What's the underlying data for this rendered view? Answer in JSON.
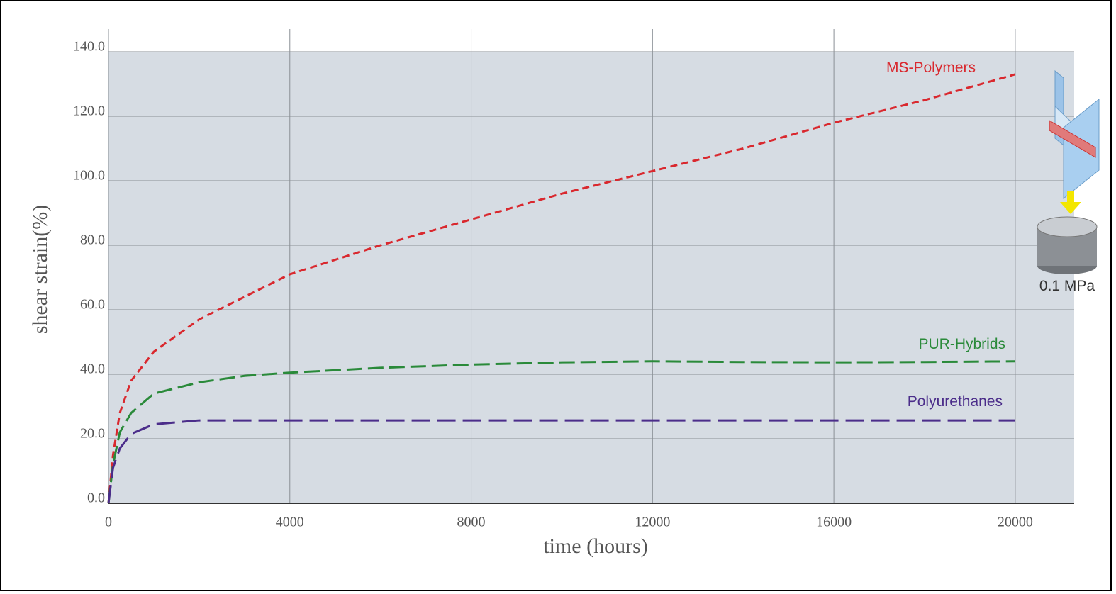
{
  "chart_data": {
    "type": "line",
    "xlabel": "time (hours)",
    "ylabel": "shear strain(%)",
    "annotation": "0.1 MPa",
    "x": [
      0,
      100,
      250,
      500,
      1000,
      2000,
      3000,
      4000,
      6000,
      8000,
      10000,
      12000,
      14000,
      16000,
      18000,
      20000
    ],
    "series": [
      {
        "name": "MS-Polymers",
        "color": "#d9282e",
        "values": [
          0,
          15,
          28,
          38,
          47,
          57,
          64,
          71,
          80,
          88,
          96,
          103,
          110,
          118,
          125,
          133
        ]
      },
      {
        "name": "PUR-Hybrids",
        "color": "#2a8a3a",
        "values": [
          0,
          12,
          22,
          28,
          34,
          37.5,
          39.5,
          40.5,
          42,
          43,
          43.7,
          44,
          43.8,
          43.7,
          43.8,
          44
        ]
      },
      {
        "name": "Polyurethanes",
        "color": "#4b2d8a",
        "values": [
          0,
          11,
          17,
          21.5,
          24.5,
          25.7,
          25.7,
          25.7,
          25.7,
          25.7,
          25.7,
          25.7,
          25.7,
          25.7,
          25.7,
          25.7
        ]
      }
    ],
    "xlim": [
      0,
      21300
    ],
    "ylim": [
      0,
      140
    ],
    "xticks": [
      0,
      4000,
      8000,
      12000,
      16000,
      20000
    ],
    "yticks": [
      {
        "value": 0,
        "label": "0.0"
      },
      {
        "value": 20,
        "label": "20.0"
      },
      {
        "value": 40,
        "label": "40.0"
      },
      {
        "value": 60,
        "label": "60.0"
      },
      {
        "value": 80,
        "label": "80.0"
      },
      {
        "value": 100,
        "label": "100.0"
      },
      {
        "value": 120,
        "label": "120.0"
      },
      {
        "value": 140,
        "label": "140.0"
      }
    ],
    "grid": true
  }
}
